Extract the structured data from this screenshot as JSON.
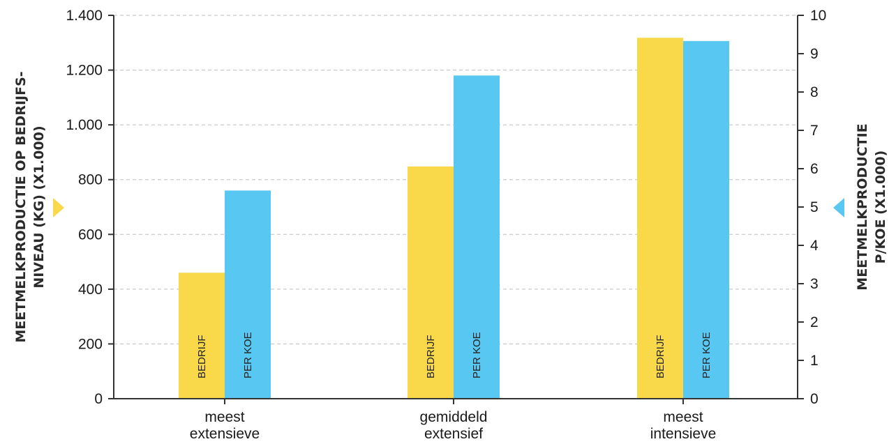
{
  "chart_data": {
    "type": "bar",
    "categories": [
      [
        "meest",
        "extensieve"
      ],
      [
        "gemiddeld",
        "extensief"
      ],
      [
        "meest",
        "intensieve"
      ]
    ],
    "series": [
      {
        "name": "BEDRIJF",
        "axis": "left",
        "color": "#f9d94a",
        "values": [
          460,
          848,
          1318
        ]
      },
      {
        "name": "PER KOE",
        "axis": "right",
        "color": "#58c8f2",
        "values": [
          5.43,
          8.43,
          9.33
        ]
      }
    ],
    "y_left": {
      "title_lines": [
        "MEETMELKPRODUCTIE OP BEDRIJFS-",
        "NIVEAU (KG) (X1.000)"
      ],
      "ylim": [
        0,
        1400
      ],
      "ticks": [
        0,
        200,
        400,
        600,
        800,
        1000,
        1200,
        1400
      ],
      "tick_labels": [
        "0",
        "200",
        "400",
        "600",
        "800",
        "1.000",
        "1.200",
        "1.400"
      ],
      "marker_color": "#f9d94a"
    },
    "y_right": {
      "title_lines": [
        "MEETMELKPRODUCTIE",
        "P/KOE (X1.000)"
      ],
      "ylim": [
        0,
        10
      ],
      "ticks": [
        0,
        1,
        2,
        3,
        4,
        5,
        6,
        7,
        8,
        9,
        10
      ],
      "tick_labels": [
        "0",
        "1",
        "2",
        "3",
        "4",
        "5",
        "6",
        "7",
        "8",
        "9",
        "10"
      ],
      "marker_color": "#58c8f2"
    },
    "grid": true
  }
}
